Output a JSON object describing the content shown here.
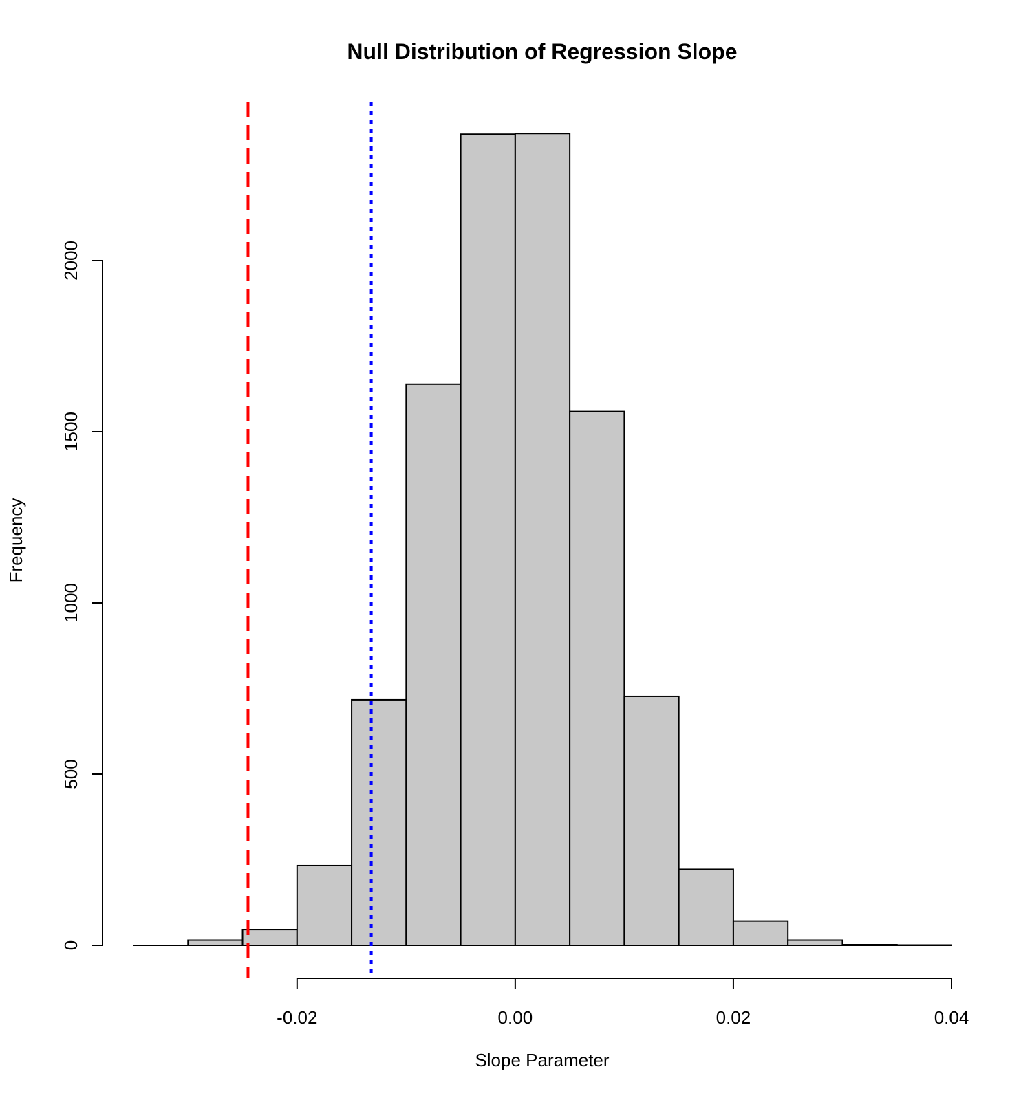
{
  "chart_data": {
    "type": "bar",
    "title": "Null Distribution of Regression Slope",
    "xlabel": "Slope Parameter",
    "ylabel": "Frequency",
    "xlim": [
      -0.035,
      0.04
    ],
    "ylim": [
      0,
      2300
    ],
    "x_ticks": [
      "-0.02",
      "0.00",
      "0.02",
      "0.04"
    ],
    "x_tick_values": [
      -0.02,
      0.0,
      0.02,
      0.04
    ],
    "y_ticks": [
      "0",
      "500",
      "1000",
      "1500",
      "2000"
    ],
    "y_tick_values": [
      0,
      500,
      1000,
      1500,
      2000
    ],
    "grid": false,
    "legend": "none",
    "bins": [
      {
        "x0": -0.035,
        "x1": -0.03,
        "count": 0
      },
      {
        "x0": -0.03,
        "x1": -0.025,
        "count": 15
      },
      {
        "x0": -0.025,
        "x1": -0.02,
        "count": 46
      },
      {
        "x0": -0.02,
        "x1": -0.015,
        "count": 233
      },
      {
        "x0": -0.015,
        "x1": -0.01,
        "count": 717
      },
      {
        "x0": -0.01,
        "x1": -0.005,
        "count": 1639
      },
      {
        "x0": -0.005,
        "x1": 0.0,
        "count": 2369
      },
      {
        "x0": 0.0,
        "x1": 0.005,
        "count": 2371
      },
      {
        "x0": 0.005,
        "x1": 0.01,
        "count": 1559
      },
      {
        "x0": 0.01,
        "x1": 0.015,
        "count": 727
      },
      {
        "x0": 0.015,
        "x1": 0.02,
        "count": 222
      },
      {
        "x0": 0.02,
        "x1": 0.025,
        "count": 71
      },
      {
        "x0": 0.025,
        "x1": 0.03,
        "count": 15
      },
      {
        "x0": 0.03,
        "x1": 0.035,
        "count": 2
      },
      {
        "x0": 0.035,
        "x1": 0.04,
        "count": 1
      }
    ],
    "reference_lines": [
      {
        "x": -0.0245,
        "color": "#ff0000",
        "style": "dashed"
      },
      {
        "x": -0.0132,
        "color": "#0000ff",
        "style": "dotted"
      }
    ],
    "bar_fill": "#c8c8c8",
    "bar_stroke": "#000000"
  }
}
